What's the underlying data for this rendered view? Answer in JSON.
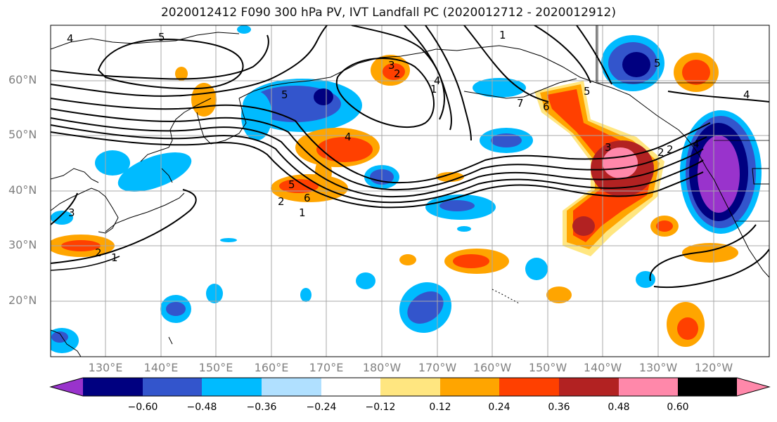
{
  "title": "2020012412 F090 300 hPa PV, IVT Landfall PC (2020012712 - 2020012912)",
  "lat_labels": [
    "60°N",
    "50°N",
    "40°N",
    "30°N",
    "20°N"
  ],
  "lon_labels": [
    "130°E",
    "140°E",
    "150°E",
    "160°E",
    "170°E",
    "180°W",
    "170°W",
    "160°W",
    "150°W",
    "140°W",
    "130°W",
    "120°W"
  ],
  "colorbar": {
    "colors": [
      "#9933cc",
      "#000080",
      "#3355cc",
      "#00bbff",
      "#b0e0ff",
      "#ffffff",
      "#ffe680",
      "#ffa500",
      "#ff4000",
      "#b22222",
      "#ff88aa"
    ],
    "tick_labels": [
      "−0.60",
      "−0.48",
      "−0.36",
      "−0.24",
      "−0.12",
      "0.12",
      "0.24",
      "0.36",
      "0.48",
      "0.60"
    ]
  },
  "contour_labels": [
    "4",
    "5",
    "1",
    "6",
    "5",
    "2",
    "4",
    "5",
    "3",
    "2",
    "1",
    "4",
    "5",
    "2",
    "1",
    "3",
    "2",
    "1",
    "7",
    "6",
    "5",
    "4",
    "3",
    "2",
    "4"
  ]
}
